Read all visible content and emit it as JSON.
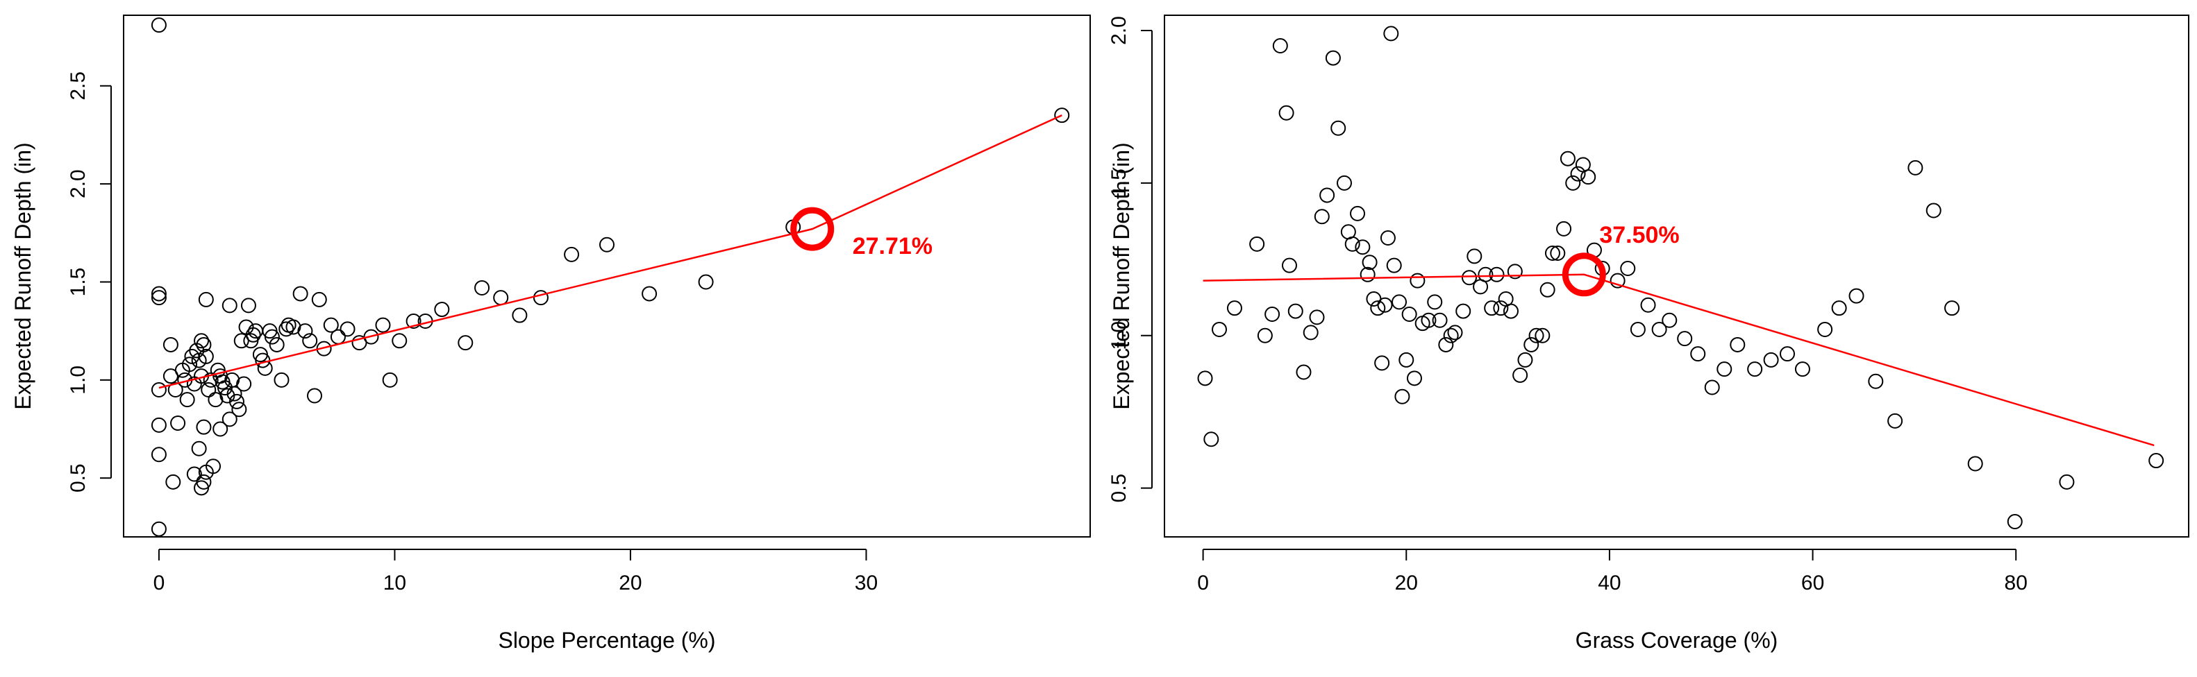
{
  "chart_data": [
    {
      "type": "scatter",
      "title": "",
      "xlabel": "Slope Percentage (%)",
      "ylabel": "Expected Runoff Depth (in)",
      "xlim": [
        -1.5,
        39.5
      ],
      "ylim": [
        0.2,
        2.86
      ],
      "xticks": [
        0,
        10,
        20,
        30
      ],
      "yticks": [
        0.5,
        1.0,
        1.5,
        2.0,
        2.5
      ],
      "grid": false,
      "legend": "none",
      "colors": {
        "points": "#000000",
        "fit": "#ff0000",
        "marker": "#ff0000",
        "annotation": "#ff0000"
      },
      "points": [
        [
          0,
          2.81
        ],
        [
          0,
          1.44
        ],
        [
          0,
          1.42
        ],
        [
          0,
          0.95
        ],
        [
          0,
          0.77
        ],
        [
          0,
          0.62
        ],
        [
          0,
          0.24
        ],
        [
          0.5,
          1.18
        ],
        [
          0.5,
          1.02
        ],
        [
          0.6,
          0.48
        ],
        [
          0.7,
          0.95
        ],
        [
          0.8,
          0.78
        ],
        [
          1.0,
          1.05
        ],
        [
          1.1,
          1.0
        ],
        [
          1.2,
          0.9
        ],
        [
          1.3,
          1.08
        ],
        [
          1.4,
          1.12
        ],
        [
          1.5,
          0.98
        ],
        [
          1.5,
          0.52
        ],
        [
          1.6,
          1.15
        ],
        [
          1.7,
          1.1
        ],
        [
          1.7,
          0.65
        ],
        [
          1.8,
          1.2
        ],
        [
          1.8,
          1.02
        ],
        [
          1.8,
          0.45
        ],
        [
          1.9,
          1.18
        ],
        [
          1.9,
          0.76
        ],
        [
          1.9,
          0.48
        ],
        [
          2.0,
          1.41
        ],
        [
          2.0,
          1.12
        ],
        [
          2.0,
          0.53
        ],
        [
          2.1,
          0.95
        ],
        [
          2.2,
          1.0
        ],
        [
          2.3,
          0.56
        ],
        [
          2.4,
          0.9
        ],
        [
          2.5,
          1.05
        ],
        [
          2.6,
          1.02
        ],
        [
          2.6,
          0.75
        ],
        [
          2.7,
          0.99
        ],
        [
          2.8,
          0.96
        ],
        [
          2.9,
          0.92
        ],
        [
          3.0,
          1.38
        ],
        [
          3.0,
          0.8
        ],
        [
          3.1,
          1.0
        ],
        [
          3.2,
          0.93
        ],
        [
          3.3,
          0.89
        ],
        [
          3.4,
          0.85
        ],
        [
          3.5,
          1.2
        ],
        [
          3.6,
          0.98
        ],
        [
          3.7,
          1.27
        ],
        [
          3.8,
          1.38
        ],
        [
          3.9,
          1.2
        ],
        [
          4.0,
          1.23
        ],
        [
          4.1,
          1.25
        ],
        [
          4.3,
          1.13
        ],
        [
          4.4,
          1.1
        ],
        [
          4.5,
          1.06
        ],
        [
          4.7,
          1.25
        ],
        [
          4.8,
          1.22
        ],
        [
          5.0,
          1.18
        ],
        [
          5.2,
          1.0
        ],
        [
          5.4,
          1.26
        ],
        [
          5.5,
          1.28
        ],
        [
          5.7,
          1.27
        ],
        [
          6.0,
          1.44
        ],
        [
          6.2,
          1.25
        ],
        [
          6.4,
          1.2
        ],
        [
          6.6,
          0.92
        ],
        [
          6.8,
          1.41
        ],
        [
          7.0,
          1.16
        ],
        [
          7.3,
          1.28
        ],
        [
          7.6,
          1.22
        ],
        [
          8.0,
          1.26
        ],
        [
          8.5,
          1.19
        ],
        [
          9.0,
          1.22
        ],
        [
          9.5,
          1.28
        ],
        [
          9.8,
          1.0
        ],
        [
          10.2,
          1.2
        ],
        [
          10.8,
          1.3
        ],
        [
          11.3,
          1.3
        ],
        [
          12.0,
          1.36
        ],
        [
          13.0,
          1.19
        ],
        [
          13.7,
          1.47
        ],
        [
          14.5,
          1.42
        ],
        [
          15.3,
          1.33
        ],
        [
          16.2,
          1.42
        ],
        [
          17.5,
          1.64
        ],
        [
          19.0,
          1.69
        ],
        [
          20.8,
          1.44
        ],
        [
          23.2,
          1.5
        ],
        [
          26.9,
          1.78
        ],
        [
          38.3,
          2.35
        ]
      ],
      "fit_line": [
        [
          0,
          0.96
        ],
        [
          27.71,
          1.77
        ],
        [
          38.3,
          2.35
        ]
      ],
      "breakpoint": {
        "x": 27.71,
        "y": 1.77,
        "label": "27.71%"
      }
    },
    {
      "type": "scatter",
      "title": "",
      "xlabel": "Grass Coverage (%)",
      "ylabel": "Expected Runoff Depth (in)",
      "xlim": [
        -3.8,
        97
      ],
      "ylim": [
        0.34,
        2.05
      ],
      "xticks": [
        0,
        20,
        40,
        60,
        80
      ],
      "yticks": [
        0.5,
        1.0,
        1.5,
        2.0
      ],
      "grid": false,
      "legend": "none",
      "colors": {
        "points": "#000000",
        "fit": "#ff0000",
        "marker": "#ff0000",
        "annotation": "#ff0000"
      },
      "points": [
        [
          0.2,
          0.86
        ],
        [
          0.8,
          0.66
        ],
        [
          1.6,
          1.02
        ],
        [
          3.1,
          1.09
        ],
        [
          5.3,
          1.3
        ],
        [
          6.1,
          1.0
        ],
        [
          6.8,
          1.07
        ],
        [
          7.6,
          1.95
        ],
        [
          8.2,
          1.73
        ],
        [
          8.5,
          1.23
        ],
        [
          9.1,
          1.08
        ],
        [
          9.9,
          0.88
        ],
        [
          10.6,
          1.01
        ],
        [
          11.2,
          1.06
        ],
        [
          11.7,
          1.39
        ],
        [
          12.2,
          1.46
        ],
        [
          12.8,
          1.91
        ],
        [
          13.3,
          1.68
        ],
        [
          13.9,
          1.5
        ],
        [
          14.3,
          1.34
        ],
        [
          14.7,
          1.3
        ],
        [
          15.2,
          1.4
        ],
        [
          15.7,
          1.29
        ],
        [
          16.2,
          1.2
        ],
        [
          16.4,
          1.24
        ],
        [
          16.8,
          1.12
        ],
        [
          17.2,
          1.09
        ],
        [
          17.6,
          0.91
        ],
        [
          17.9,
          1.1
        ],
        [
          18.2,
          1.32
        ],
        [
          18.5,
          1.99
        ],
        [
          18.8,
          1.23
        ],
        [
          19.3,
          1.11
        ],
        [
          19.6,
          0.8
        ],
        [
          20.0,
          0.92
        ],
        [
          20.3,
          1.07
        ],
        [
          20.8,
          0.86
        ],
        [
          21.1,
          1.18
        ],
        [
          21.6,
          1.04
        ],
        [
          22.2,
          1.05
        ],
        [
          22.8,
          1.11
        ],
        [
          23.3,
          1.05
        ],
        [
          23.9,
          0.97
        ],
        [
          24.4,
          1.0
        ],
        [
          24.8,
          1.01
        ],
        [
          25.6,
          1.08
        ],
        [
          26.2,
          1.19
        ],
        [
          26.7,
          1.26
        ],
        [
          27.3,
          1.16
        ],
        [
          27.8,
          1.2
        ],
        [
          28.4,
          1.09
        ],
        [
          28.9,
          1.2
        ],
        [
          29.3,
          1.09
        ],
        [
          29.8,
          1.12
        ],
        [
          30.3,
          1.08
        ],
        [
          30.7,
          1.21
        ],
        [
          31.2,
          0.87
        ],
        [
          31.7,
          0.92
        ],
        [
          32.3,
          0.97
        ],
        [
          32.8,
          1.0
        ],
        [
          33.4,
          1.0
        ],
        [
          33.9,
          1.15
        ],
        [
          34.4,
          1.27
        ],
        [
          34.9,
          1.27
        ],
        [
          35.5,
          1.35
        ],
        [
          35.9,
          1.58
        ],
        [
          36.4,
          1.5
        ],
        [
          36.9,
          1.53
        ],
        [
          37.4,
          1.56
        ],
        [
          37.9,
          1.52
        ],
        [
          38.5,
          1.28
        ],
        [
          39.3,
          1.22
        ],
        [
          40.8,
          1.18
        ],
        [
          41.8,
          1.22
        ],
        [
          42.8,
          1.02
        ],
        [
          43.8,
          1.1
        ],
        [
          44.9,
          1.02
        ],
        [
          45.9,
          1.05
        ],
        [
          47.4,
          0.99
        ],
        [
          48.7,
          0.94
        ],
        [
          50.1,
          0.83
        ],
        [
          51.3,
          0.89
        ],
        [
          52.6,
          0.97
        ],
        [
          54.3,
          0.89
        ],
        [
          55.9,
          0.92
        ],
        [
          57.5,
          0.94
        ],
        [
          59.0,
          0.89
        ],
        [
          61.2,
          1.02
        ],
        [
          62.6,
          1.09
        ],
        [
          64.3,
          1.13
        ],
        [
          66.2,
          0.85
        ],
        [
          68.1,
          0.72
        ],
        [
          70.1,
          1.55
        ],
        [
          71.9,
          1.41
        ],
        [
          73.7,
          1.09
        ],
        [
          76.0,
          0.58
        ],
        [
          79.9,
          0.39
        ],
        [
          85.0,
          0.52
        ],
        [
          93.8,
          0.59
        ]
      ],
      "fit_line": [
        [
          0,
          1.18
        ],
        [
          37.5,
          1.2
        ],
        [
          93.6,
          0.64
        ]
      ],
      "breakpoint": {
        "x": 37.5,
        "y": 1.2,
        "label": "37.50%"
      }
    }
  ]
}
